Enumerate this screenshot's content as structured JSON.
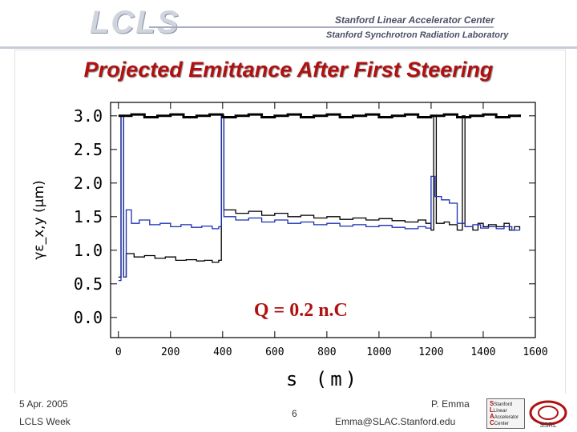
{
  "header": {
    "logo_text": "LCLS",
    "lab_line1": "Stanford Linear Accelerator Center",
    "lab_line2": "Stanford Synchrotron Radiation Laboratory"
  },
  "slide_title": "Projected Emittance After First Steering",
  "footer": {
    "date": "5 Apr. 2005",
    "event": "LCLS Week",
    "page": "6",
    "author": "P. Emma",
    "email": "Emma@SLAC.Stanford.edu",
    "logo_lines": [
      "Stanford",
      "Linear",
      "Accelerator",
      "Center"
    ],
    "ssrl_text": "SSRL"
  },
  "chart_data": {
    "type": "line",
    "ylabel": "γε_x,y (μm)",
    "xlabel": "s (m)",
    "annotation": "Q = 0.2 n.C",
    "xlim": [
      -30,
      1600
    ],
    "ylim": [
      -0.3,
      3.2
    ],
    "xticks": [
      "0",
      "200",
      "400",
      "600",
      "800",
      "1000",
      "1200",
      "1400",
      "1600"
    ],
    "yticks": [
      "0.0",
      "0.5",
      "1.0",
      "1.5",
      "2.0",
      "2.5",
      "3.0"
    ],
    "xtick_values": [
      0,
      200,
      400,
      600,
      800,
      1000,
      1200,
      1400,
      1600
    ],
    "ytick_values": [
      0.0,
      0.5,
      1.0,
      1.5,
      2.0,
      2.5,
      3.0
    ],
    "colors": {
      "x_series": "#000000",
      "y_series": "#1a2fb0"
    },
    "series": [
      {
        "points": [
          [
            0,
            0.6
          ],
          [
            10,
            3.0
          ],
          [
            20,
            0.6
          ],
          [
            30,
            0.95
          ],
          [
            60,
            0.9
          ],
          [
            100,
            0.92
          ],
          [
            140,
            0.88
          ],
          [
            180,
            0.9
          ],
          [
            220,
            0.85
          ],
          [
            260,
            0.86
          ],
          [
            300,
            0.84
          ],
          [
            330,
            0.85
          ],
          [
            360,
            0.82
          ],
          [
            385,
            0.85
          ],
          [
            395,
            3.0
          ],
          [
            405,
            1.6
          ],
          [
            450,
            1.55
          ],
          [
            500,
            1.58
          ],
          [
            550,
            1.52
          ],
          [
            600,
            1.55
          ],
          [
            650,
            1.5
          ],
          [
            700,
            1.52
          ],
          [
            750,
            1.48
          ],
          [
            800,
            1.5
          ],
          [
            850,
            1.46
          ],
          [
            900,
            1.48
          ],
          [
            950,
            1.45
          ],
          [
            1000,
            1.47
          ],
          [
            1050,
            1.44
          ],
          [
            1100,
            1.42
          ],
          [
            1150,
            1.45
          ],
          [
            1180,
            1.4
          ],
          [
            1200,
            1.3
          ],
          [
            1210,
            3.0
          ],
          [
            1220,
            1.4
          ],
          [
            1250,
            1.42
          ],
          [
            1270,
            1.38
          ],
          [
            1300,
            1.3
          ],
          [
            1320,
            3.0
          ],
          [
            1330,
            1.35
          ],
          [
            1360,
            1.3
          ],
          [
            1380,
            1.4
          ],
          [
            1400,
            1.35
          ],
          [
            1420,
            1.38
          ],
          [
            1450,
            1.35
          ],
          [
            1480,
            1.4
          ],
          [
            1500,
            1.3
          ],
          [
            1520,
            1.35
          ],
          [
            1540,
            1.32
          ]
        ]
      },
      {
        "points": [
          [
            0,
            0.55
          ],
          [
            10,
            3.0
          ],
          [
            20,
            0.6
          ],
          [
            30,
            1.6
          ],
          [
            50,
            1.4
          ],
          [
            80,
            1.45
          ],
          [
            120,
            1.38
          ],
          [
            160,
            1.4
          ],
          [
            200,
            1.35
          ],
          [
            240,
            1.38
          ],
          [
            280,
            1.34
          ],
          [
            320,
            1.36
          ],
          [
            360,
            1.32
          ],
          [
            385,
            1.35
          ],
          [
            395,
            3.0
          ],
          [
            405,
            1.5
          ],
          [
            450,
            1.45
          ],
          [
            500,
            1.48
          ],
          [
            550,
            1.42
          ],
          [
            600,
            1.45
          ],
          [
            650,
            1.4
          ],
          [
            700,
            1.42
          ],
          [
            750,
            1.38
          ],
          [
            800,
            1.4
          ],
          [
            850,
            1.36
          ],
          [
            900,
            1.38
          ],
          [
            950,
            1.35
          ],
          [
            1000,
            1.37
          ],
          [
            1050,
            1.34
          ],
          [
            1100,
            1.32
          ],
          [
            1150,
            1.35
          ],
          [
            1180,
            1.33
          ],
          [
            1200,
            2.1
          ],
          [
            1215,
            1.8
          ],
          [
            1240,
            1.75
          ],
          [
            1270,
            1.7
          ],
          [
            1300,
            1.4
          ],
          [
            1330,
            1.35
          ],
          [
            1360,
            1.38
          ],
          [
            1390,
            1.33
          ],
          [
            1420,
            1.35
          ],
          [
            1450,
            1.32
          ],
          [
            1480,
            1.35
          ],
          [
            1510,
            1.3
          ],
          [
            1540,
            1.33
          ]
        ]
      },
      {
        "points": [
          [
            0,
            3.0
          ],
          [
            50,
            3.02
          ],
          [
            100,
            2.98
          ],
          [
            150,
            3.0
          ],
          [
            200,
            3.02
          ],
          [
            250,
            2.98
          ],
          [
            300,
            3.0
          ],
          [
            350,
            3.02
          ],
          [
            400,
            2.98
          ],
          [
            450,
            3.0
          ],
          [
            500,
            3.02
          ],
          [
            550,
            2.98
          ],
          [
            600,
            3.0
          ],
          [
            650,
            3.02
          ],
          [
            700,
            2.98
          ],
          [
            750,
            3.0
          ],
          [
            800,
            3.02
          ],
          [
            850,
            2.98
          ],
          [
            900,
            3.0
          ],
          [
            950,
            3.02
          ],
          [
            1000,
            2.98
          ],
          [
            1050,
            3.0
          ],
          [
            1100,
            3.02
          ],
          [
            1150,
            2.98
          ],
          [
            1200,
            3.0
          ],
          [
            1250,
            3.02
          ],
          [
            1300,
            2.98
          ],
          [
            1350,
            3.0
          ],
          [
            1400,
            3.02
          ],
          [
            1450,
            2.98
          ],
          [
            1500,
            3.0
          ],
          [
            1540,
            3.02
          ]
        ]
      }
    ]
  }
}
